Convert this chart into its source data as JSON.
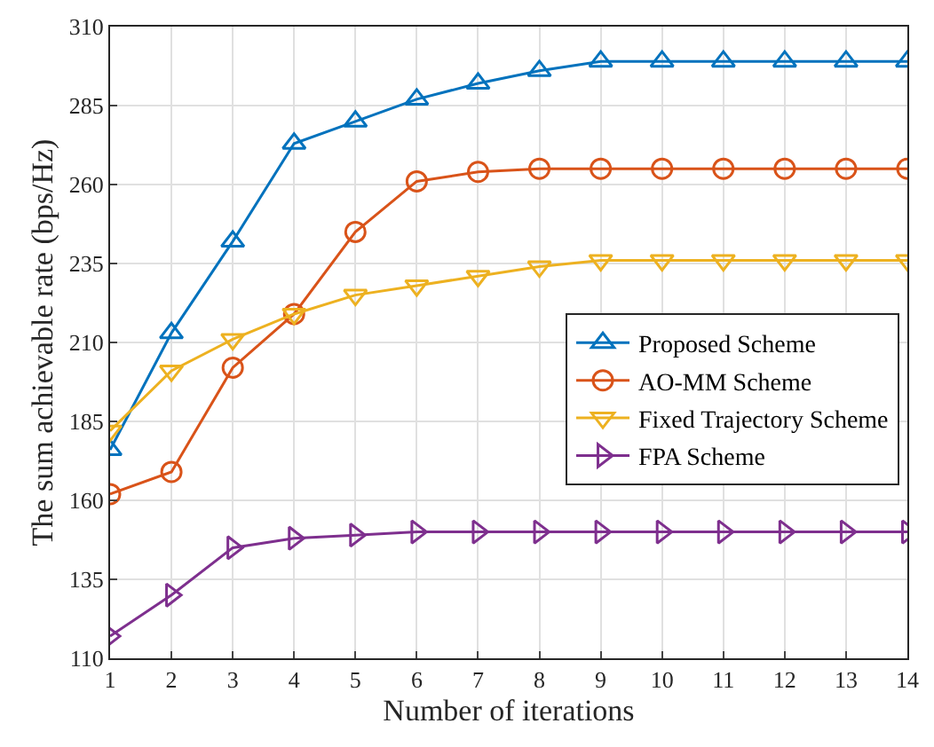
{
  "chart_data": {
    "type": "line",
    "xlabel": "Number of iterations",
    "ylabel": "The sum achievable rate (bps/Hz)",
    "x": [
      1,
      2,
      3,
      4,
      5,
      6,
      7,
      8,
      9,
      10,
      11,
      12,
      13,
      14
    ],
    "xlim": [
      1,
      14
    ],
    "xticks": [
      1,
      2,
      3,
      4,
      5,
      6,
      7,
      8,
      9,
      10,
      11,
      12,
      13,
      14
    ],
    "ylim": [
      110,
      310
    ],
    "yticks": [
      110,
      135,
      160,
      185,
      210,
      235,
      260,
      285,
      310
    ],
    "grid": true,
    "legend": "right",
    "line_style": "solid",
    "series": [
      {
        "name": "Proposed Scheme",
        "color": "#0072bd",
        "marker": "triangle",
        "values": [
          176,
          213,
          242,
          273,
          280,
          287,
          292,
          296,
          299,
          299,
          299,
          299,
          299,
          299
        ]
      },
      {
        "name": "AO-MM Scheme",
        "color": "#d95319",
        "marker": "circle",
        "values": [
          162,
          169,
          202,
          219,
          245,
          261,
          264,
          265,
          265,
          265,
          265,
          265,
          265,
          265
        ]
      },
      {
        "name": "Fixed Trajectory Scheme",
        "color": "#edb120",
        "marker": "triangle-down",
        "values": [
          182,
          201,
          211,
          219,
          225,
          228,
          231,
          234,
          236,
          236,
          236,
          236,
          236,
          236
        ]
      },
      {
        "name": "FPA Scheme",
        "color": "#7e2f8e",
        "marker": "triangle-right",
        "values": [
          117,
          130,
          145,
          148,
          149,
          150,
          150,
          150,
          150,
          150,
          150,
          150,
          150,
          150
        ]
      }
    ]
  }
}
